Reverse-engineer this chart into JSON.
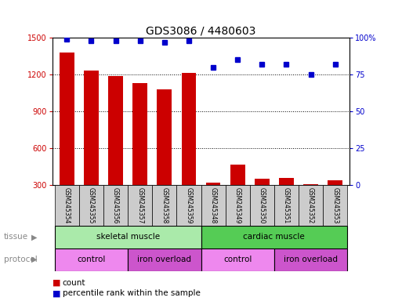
{
  "title": "GDS3086 / 4480603",
  "samples": [
    "GSM245354",
    "GSM245355",
    "GSM245356",
    "GSM245357",
    "GSM245358",
    "GSM245359",
    "GSM245348",
    "GSM245349",
    "GSM245350",
    "GSM245351",
    "GSM245352",
    "GSM245353"
  ],
  "counts": [
    1380,
    1230,
    1190,
    1130,
    1080,
    1210,
    320,
    470,
    350,
    360,
    310,
    340
  ],
  "percentile_ranks": [
    99,
    98,
    98,
    98,
    97,
    98,
    80,
    85,
    82,
    82,
    75,
    82
  ],
  "bar_color": "#cc0000",
  "dot_color": "#0000cc",
  "ylim_left": [
    300,
    1500
  ],
  "ylim_right": [
    0,
    100
  ],
  "yticks_left": [
    300,
    600,
    900,
    1200,
    1500
  ],
  "yticks_right": [
    0,
    25,
    50,
    75,
    100
  ],
  "tissue_labels": [
    {
      "label": "skeletal muscle",
      "start": 0,
      "end": 5,
      "color": "#aaeaaa"
    },
    {
      "label": "cardiac muscle",
      "start": 6,
      "end": 11,
      "color": "#55cc55"
    }
  ],
  "protocol_groups": [
    {
      "label": "control",
      "start": 0,
      "end": 2,
      "color": "#ee88ee"
    },
    {
      "label": "iron overload",
      "start": 3,
      "end": 5,
      "color": "#cc55cc"
    },
    {
      "label": "control",
      "start": 6,
      "end": 8,
      "color": "#ee88ee"
    },
    {
      "label": "iron overload",
      "start": 9,
      "end": 11,
      "color": "#cc55cc"
    }
  ],
  "tick_color_left": "#cc0000",
  "tick_color_right": "#0000cc",
  "bg_color": "#ffffff",
  "plot_bg_color": "#ffffff",
  "xticklabel_bg": "#cccccc",
  "grid_color": "#000000",
  "legend_count_color": "#cc0000",
  "legend_pct_color": "#0000cc",
  "figsize": [
    5.13,
    3.84
  ],
  "dpi": 100
}
